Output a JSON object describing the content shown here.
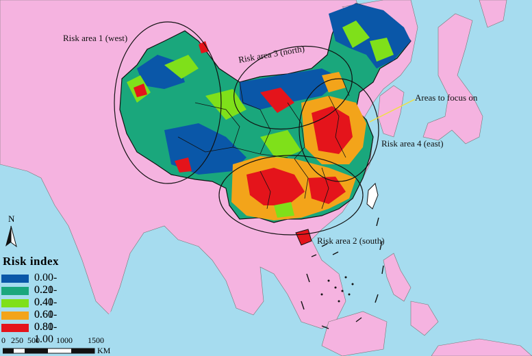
{
  "map": {
    "labels": {
      "risk_area_1": "Risk area 1 (west)",
      "risk_area_2": "Risk area 2 (south)",
      "risk_area_3": "Risk area 3 (north)",
      "risk_area_4": "Risk area 4 (east)",
      "focus": "Areas to focus on"
    },
    "colors": {
      "sea": "#a6dcef",
      "land": "#f5b3e0",
      "china_outline": "#111111"
    }
  },
  "legend": {
    "title": "Risk  index",
    "items": [
      {
        "label": "0.00-0.20",
        "color": "#0a57a8"
      },
      {
        "label": "0.21-0.40",
        "color": "#1aa77c"
      },
      {
        "label": "0.41-0.60",
        "color": "#7fe01a"
      },
      {
        "label": "0.61-0.80",
        "color": "#f3a41a"
      },
      {
        "label": "0.81-1.00",
        "color": "#e4141b"
      }
    ]
  },
  "scale": {
    "ticks": [
      "0",
      "250",
      "500",
      "1000",
      "1500"
    ],
    "unit": "KM"
  },
  "north": {
    "label": "N"
  }
}
